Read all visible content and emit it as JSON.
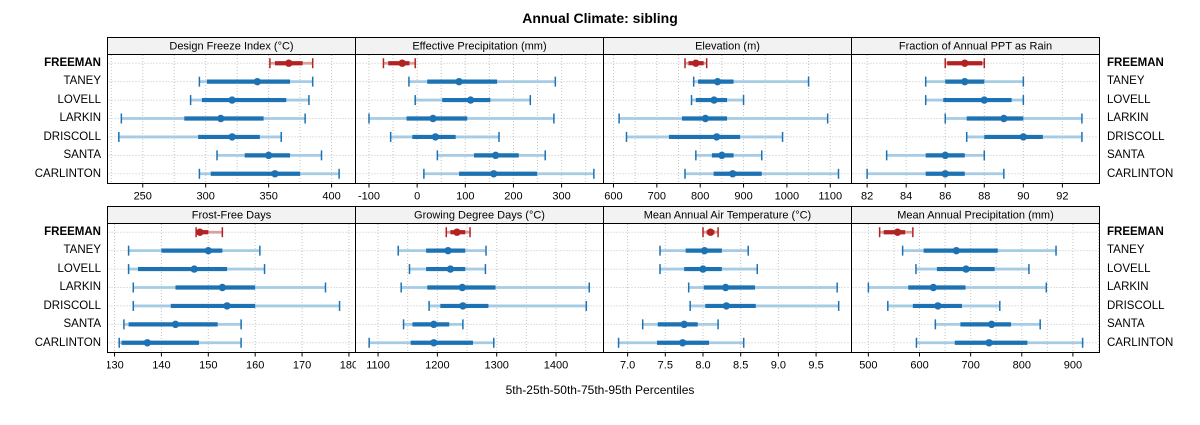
{
  "chart_data": {
    "type": "dotplot",
    "title": "Annual Climate: sibling",
    "xlabel": "5th-25th-50th-75th-95th Percentiles",
    "percentiles": [
      "5th",
      "25th",
      "50th",
      "75th",
      "95th"
    ],
    "locations": [
      "FREEMAN",
      "TANEY",
      "LOVELL",
      "LARKIN",
      "DRISCOLL",
      "SANTA",
      "CARLINTON"
    ],
    "highlight": "FREEMAN",
    "layout": {
      "rows": 2,
      "cols": 4,
      "grid": "dotted",
      "legend": "none"
    },
    "colors": {
      "normal": "#1c72b2",
      "normal_light": "#a5cbe5",
      "highlight": "#b22222",
      "highlight_light": "#dc9f9b",
      "strip_bg": "#f2f2f2",
      "grid": "#c4c4c4",
      "border": "#000000"
    },
    "panels": [
      {
        "title": "Design Freeze Index (°C)",
        "xlim": [
          222,
          419
        ],
        "ticks": [
          250,
          300,
          350,
          400
        ],
        "tick_labels": [
          "250",
          "300",
          "350",
          "400"
        ],
        "grid_step": 25,
        "series": [
          {
            "location": "FREEMAN",
            "p": [
              351,
              355,
              366,
              377,
              385
            ]
          },
          {
            "location": "TANEY",
            "p": [
              295,
              301,
              341,
              367,
              385
            ]
          },
          {
            "location": "LOVELL",
            "p": [
              288,
              297,
              321,
              364,
              382
            ]
          },
          {
            "location": "LARKIN",
            "p": [
              233,
              283,
              312,
              346,
              379
            ]
          },
          {
            "location": "DRISCOLL",
            "p": [
              231,
              294,
              321,
              343,
              360
            ]
          },
          {
            "location": "SANTA",
            "p": [
              309,
              331,
              350,
              367,
              392
            ]
          },
          {
            "location": "CARLINTON",
            "p": [
              295,
              304,
              355,
              375,
              406
            ]
          }
        ]
      },
      {
        "title": "Effective Precipitation (mm)",
        "xlim": [
          -128,
          387
        ],
        "ticks": [
          -100,
          0,
          100,
          200,
          300
        ],
        "tick_labels": [
          "-100",
          "0",
          "100",
          "200",
          "300"
        ],
        "grid_step": 50,
        "series": [
          {
            "location": "FREEMAN",
            "p": [
              -70,
              -60,
              -31,
              -16,
              -4
            ]
          },
          {
            "location": "TANEY",
            "p": [
              -17,
              21,
              87,
              166,
              287
            ]
          },
          {
            "location": "LOVELL",
            "p": [
              -4,
              52,
              111,
              152,
              235
            ]
          },
          {
            "location": "LARKIN",
            "p": [
              -100,
              -22,
              33,
              104,
              284
            ]
          },
          {
            "location": "DRISCOLL",
            "p": [
              -55,
              -10,
              38,
              80,
              170
            ]
          },
          {
            "location": "SANTA",
            "p": [
              42,
              118,
              163,
              211,
              266
            ]
          },
          {
            "location": "CARLINTON",
            "p": [
              14,
              87,
              159,
              249,
              367
            ]
          }
        ]
      },
      {
        "title": "Elevation (m)",
        "xlim": [
          577,
          1149
        ],
        "ticks": [
          600,
          700,
          800,
          900,
          1000,
          1100
        ],
        "tick_labels": [
          "600",
          "700",
          "800",
          "900",
          "1000",
          "1100"
        ],
        "grid_step": 50,
        "series": [
          {
            "location": "FREEMAN",
            "p": [
              765,
              773,
              790,
              808,
              815
            ]
          },
          {
            "location": "TANEY",
            "p": [
              785,
              795,
              840,
              877,
              1050
            ]
          },
          {
            "location": "LOVELL",
            "p": [
              780,
              790,
              832,
              862,
              900
            ]
          },
          {
            "location": "LARKIN",
            "p": [
              613,
              758,
              812,
              862,
              1094
            ]
          },
          {
            "location": "DRISCOLL",
            "p": [
              630,
              728,
              838,
              892,
              990
            ]
          },
          {
            "location": "SANTA",
            "p": [
              790,
              827,
              850,
              877,
              942
            ]
          },
          {
            "location": "CARLINTON",
            "p": [
              765,
              831,
              875,
              942,
              1119
            ]
          }
        ]
      },
      {
        "title": "Fraction of Annual PPT as Rain",
        "xlim": [
          81.2,
          93.9
        ],
        "ticks": [
          82,
          84,
          86,
          88,
          90,
          92
        ],
        "tick_labels": [
          "82",
          "84",
          "86",
          "88",
          "90",
          "92"
        ],
        "grid_step": 2,
        "series": [
          {
            "location": "FREEMAN",
            "p": [
              86,
              86.1,
              87,
              87.9,
              88
            ]
          },
          {
            "location": "TANEY",
            "p": [
              85,
              86,
              87,
              88,
              90
            ]
          },
          {
            "location": "LOVELL",
            "p": [
              85,
              85.9,
              88,
              89.4,
              90
            ]
          },
          {
            "location": "LARKIN",
            "p": [
              86,
              87.1,
              89,
              90,
              93
            ]
          },
          {
            "location": "DRISCOLL",
            "p": [
              87.1,
              88,
              90,
              91,
              93
            ]
          },
          {
            "location": "SANTA",
            "p": [
              83,
              85,
              86,
              87,
              88
            ]
          },
          {
            "location": "CARLINTON",
            "p": [
              82,
              85,
              86,
              87,
              89
            ]
          }
        ]
      },
      {
        "title": "Frost-Free Days",
        "xlim": [
          128.5,
          181.4
        ],
        "ticks": [
          130,
          140,
          150,
          160,
          170,
          180
        ],
        "tick_labels": [
          "130",
          "140",
          "150",
          "160",
          "170",
          "180"
        ],
        "grid_step": 10,
        "series": [
          {
            "location": "FREEMAN",
            "p": [
              147.4,
              147.8,
              148.2,
              150,
              153
            ]
          },
          {
            "location": "TANEY",
            "p": [
              133,
              140,
              150,
              153,
              161
            ]
          },
          {
            "location": "LOVELL",
            "p": [
              133,
              135,
              147,
              154,
              162
            ]
          },
          {
            "location": "LARKIN",
            "p": [
              134,
              143,
              153,
              160,
              175
            ]
          },
          {
            "location": "DRISCOLL",
            "p": [
              134,
              142,
              154,
              160,
              178
            ]
          },
          {
            "location": "SANTA",
            "p": [
              132,
              133,
              143,
              152,
              157
            ]
          },
          {
            "location": "CARLINTON",
            "p": [
              131,
              131.5,
              137,
              148,
              157
            ]
          }
        ]
      },
      {
        "title": "Growing Degree Days (°C)",
        "xlim": [
          1062,
          1480
        ],
        "ticks": [
          1100,
          1200,
          1300,
          1400
        ],
        "tick_labels": [
          "1100",
          "1200",
          "1300",
          "1400"
        ],
        "grid_step": 50,
        "series": [
          {
            "location": "FREEMAN",
            "p": [
              1215,
              1222,
              1233,
              1247,
              1255
            ]
          },
          {
            "location": "TANEY",
            "p": [
              1134,
              1181,
              1218,
              1247,
              1282
            ]
          },
          {
            "location": "LOVELL",
            "p": [
              1153,
              1181,
              1222,
              1247,
              1281
            ]
          },
          {
            "location": "LARKIN",
            "p": [
              1139,
              1183,
              1242,
              1298,
              1456
            ]
          },
          {
            "location": "DRISCOLL",
            "p": [
              1186,
              1205,
              1243,
              1286,
              1451
            ]
          },
          {
            "location": "SANTA",
            "p": [
              1143,
              1158,
              1194,
              1220,
              1243
            ]
          },
          {
            "location": "CARLINTON",
            "p": [
              1085,
              1155,
              1194,
              1260,
              1295
            ]
          }
        ]
      },
      {
        "title": "Mean Annual Air Temperature (°C)",
        "xlim": [
          6.68,
          9.97
        ],
        "ticks": [
          7,
          7.5,
          8,
          8.5,
          9,
          9.5
        ],
        "tick_labels": [
          "7.0",
          "7.5",
          "8.0",
          "8.5",
          "9.0",
          "9.5"
        ],
        "grid_step": 0.5,
        "series": [
          {
            "location": "FREEMAN",
            "p": [
              8.0,
              8.05,
              8.1,
              8.15,
              8.2
            ]
          },
          {
            "location": "TANEY",
            "p": [
              7.43,
              7.77,
              8.02,
              8.25,
              8.6
            ]
          },
          {
            "location": "LOVELL",
            "p": [
              7.43,
              7.75,
              8.0,
              8.25,
              8.72
            ]
          },
          {
            "location": "LARKIN",
            "p": [
              7.81,
              8.01,
              8.3,
              8.69,
              9.78
            ]
          },
          {
            "location": "DRISCOLL",
            "p": [
              7.83,
              8.03,
              8.31,
              8.7,
              9.8
            ]
          },
          {
            "location": "SANTA",
            "p": [
              7.2,
              7.4,
              7.75,
              7.93,
              8.2
            ]
          },
          {
            "location": "CARLINTON",
            "p": [
              6.88,
              7.39,
              7.73,
              8.08,
              8.54
            ]
          }
        ]
      },
      {
        "title": "Mean Annual Precipitation (mm)",
        "xlim": [
          467,
          952
        ],
        "ticks": [
          500,
          600,
          700,
          800,
          900
        ],
        "tick_labels": [
          "500",
          "600",
          "700",
          "800",
          "900"
        ],
        "grid_step": 50,
        "series": [
          {
            "location": "FREEMAN",
            "p": [
              522,
              530,
              557,
              572,
              587
            ]
          },
          {
            "location": "TANEY",
            "p": [
              567,
              608,
              672,
              753,
              867
            ]
          },
          {
            "location": "LOVELL",
            "p": [
              593,
              634,
              691,
              747,
              814
            ]
          },
          {
            "location": "LARKIN",
            "p": [
              500,
              578,
              627,
              690,
              848
            ]
          },
          {
            "location": "DRISCOLL",
            "p": [
              538,
              587,
              636,
              683,
              757
            ]
          },
          {
            "location": "SANTA",
            "p": [
              631,
              680,
              741,
              779,
              836
            ]
          },
          {
            "location": "CARLINTON",
            "p": [
              594,
              669,
              736,
              811,
              919
            ]
          }
        ]
      }
    ]
  }
}
